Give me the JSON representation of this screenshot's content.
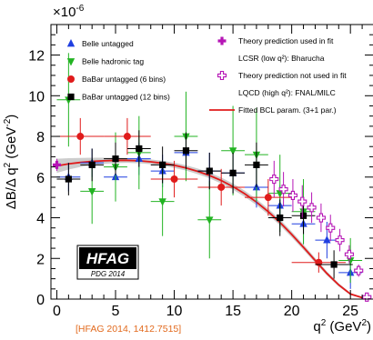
{
  "chart_data": {
    "type": "scatter",
    "title": "",
    "xlabel": "q",
    "xlabel_sup": "2",
    "xlabel_unit": "(GeV",
    "xlabel_unit_sup": "2",
    "xlabel_unit_close": ")",
    "ylabel": "ΔB/Δ q",
    "ylabel_sup": "2",
    "ylabel_unit": "(GeV",
    "ylabel_unit_sup": "-2",
    "ylabel_unit_close": ")",
    "y_multiplier_base": "×10",
    "y_multiplier_exp": "-6",
    "xlim": [
      -0.5,
      27
    ],
    "ylim": [
      0,
      13.5
    ],
    "xticks": [
      0,
      5,
      10,
      15,
      20,
      25
    ],
    "yticks": [
      0,
      2,
      4,
      6,
      8,
      10,
      12
    ],
    "x_minor_step": 1,
    "y_minor_step": 0.5,
    "grid": false,
    "legend_position": "top",
    "legend_left": [
      {
        "label": "Belle untagged",
        "marker": "triangle-up",
        "color": "#1f3fe0"
      },
      {
        "label": "Belle hadronic tag",
        "marker": "triangle-down",
        "color": "#22b322"
      },
      {
        "label": "BaBar untagged (6 bins)",
        "marker": "circle",
        "color": "#e01b1b"
      },
      {
        "label": "BaBar untagged (12 bins)",
        "marker": "square",
        "color": "#000000"
      }
    ],
    "legend_right": [
      {
        "label": "Theory prediction used in fit",
        "marker": "cross-filled",
        "color": "#b515b5"
      },
      {
        "label": "LCSR (low q²): Bharucha",
        "marker": "none",
        "color": "#b515b5"
      },
      {
        "label": "Theory prediction not used in fit",
        "marker": "cross-open",
        "color": "#b515b5"
      },
      {
        "label": "LQCD (high q²): FNAL/MILC",
        "marker": "none",
        "color": "#b515b5"
      },
      {
        "label": "Fitted BCL param. (3+1 par.)",
        "marker": "line",
        "color": "#e01b1b"
      }
    ],
    "fit_curve": {
      "name": "Fitted BCL param. (3+1 par.)",
      "color": "#e01b1b",
      "band_color": "#c8c8c8",
      "x": [
        0,
        1,
        2,
        3,
        4,
        5,
        6,
        7,
        8,
        9,
        10,
        11,
        12,
        13,
        14,
        15,
        16,
        17,
        18,
        19,
        20,
        21,
        22,
        23,
        24,
        25,
        26.4
      ],
      "y": [
        6.55,
        6.65,
        6.72,
        6.77,
        6.8,
        6.82,
        6.82,
        6.8,
        6.75,
        6.68,
        6.58,
        6.45,
        6.28,
        6.08,
        5.83,
        5.53,
        5.18,
        4.77,
        4.3,
        3.77,
        3.18,
        2.55,
        1.9,
        1.26,
        0.7,
        0.25,
        0.0
      ],
      "band": [
        0.35,
        0.28,
        0.22,
        0.18,
        0.15,
        0.13,
        0.12,
        0.12,
        0.12,
        0.12,
        0.13,
        0.13,
        0.14,
        0.14,
        0.15,
        0.15,
        0.15,
        0.15,
        0.15,
        0.15,
        0.14,
        0.13,
        0.12,
        0.1,
        0.08,
        0.05,
        0.02
      ]
    },
    "series": [
      {
        "name": "Belle untagged",
        "marker": "triangle-up",
        "color": "#1f3fe0",
        "points": [
          {
            "x": 1,
            "y": 6.0,
            "xerr": 1,
            "yerr": 0.7
          },
          {
            "x": 3,
            "y": 6.7,
            "xerr": 1,
            "yerr": 0.7
          },
          {
            "x": 5,
            "y": 6.0,
            "xerr": 1,
            "yerr": 0.7
          },
          {
            "x": 7,
            "y": 6.9,
            "xerr": 1,
            "yerr": 0.8
          },
          {
            "x": 9,
            "y": 6.3,
            "xerr": 1,
            "yerr": 0.8
          },
          {
            "x": 11,
            "y": 7.2,
            "xerr": 1,
            "yerr": 0.9
          },
          {
            "x": 13,
            "y": 6.3,
            "xerr": 1,
            "yerr": 0.9
          },
          {
            "x": 15,
            "y": 6.2,
            "xerr": 1,
            "yerr": 1.0
          },
          {
            "x": 17,
            "y": 5.5,
            "xerr": 1,
            "yerr": 1.0
          },
          {
            "x": 19,
            "y": 4.6,
            "xerr": 1,
            "yerr": 1.0
          },
          {
            "x": 21,
            "y": 3.7,
            "xerr": 1,
            "yerr": 1.0
          },
          {
            "x": 23,
            "y": 2.9,
            "xerr": 1,
            "yerr": 0.9
          },
          {
            "x": 25,
            "y": 1.3,
            "xerr": 1,
            "yerr": 0.8
          }
        ]
      },
      {
        "name": "Belle hadronic tag",
        "marker": "triangle-down",
        "color": "#22b322",
        "points": [
          {
            "x": 1,
            "y": 9.8,
            "xerr": 1,
            "yerr": 2.3
          },
          {
            "x": 3,
            "y": 5.3,
            "xerr": 1,
            "yerr": 1.6
          },
          {
            "x": 5,
            "y": 6.5,
            "xerr": 1,
            "yerr": 1.7
          },
          {
            "x": 7,
            "y": 7.2,
            "xerr": 1,
            "yerr": 1.8
          },
          {
            "x": 9,
            "y": 4.8,
            "xerr": 1,
            "yerr": 1.7
          },
          {
            "x": 11,
            "y": 8.0,
            "xerr": 1,
            "yerr": 2.2
          },
          {
            "x": 13,
            "y": 3.9,
            "xerr": 1,
            "yerr": 1.9
          },
          {
            "x": 15,
            "y": 7.3,
            "xerr": 1,
            "yerr": 2.2
          },
          {
            "x": 17,
            "y": 7.1,
            "xerr": 1,
            "yerr": 2.3
          },
          {
            "x": 19,
            "y": 5.2,
            "xerr": 1,
            "yerr": 1.9
          },
          {
            "x": 21,
            "y": 4.3,
            "xerr": 1,
            "yerr": 1.6
          },
          {
            "x": 25,
            "y": 1.9,
            "xerr": 1,
            "yerr": 1.1
          }
        ]
      },
      {
        "name": "BaBar untagged (6 bins)",
        "marker": "circle",
        "color": "#e01b1b",
        "points": [
          {
            "x": 2,
            "y": 8.0,
            "xerr": 2,
            "yerr": 0.9
          },
          {
            "x": 6,
            "y": 8.0,
            "xerr": 2,
            "yerr": 0.9
          },
          {
            "x": 10,
            "y": 5.9,
            "xerr": 2,
            "yerr": 0.9
          },
          {
            "x": 14,
            "y": 5.5,
            "xerr": 2,
            "yerr": 0.9
          },
          {
            "x": 18,
            "y": 5.0,
            "xerr": 2,
            "yerr": 0.9
          },
          {
            "x": 22.3,
            "y": 1.8,
            "xerr": 2.3,
            "yerr": 0.5
          }
        ]
      },
      {
        "name": "BaBar untagged (12 bins)",
        "marker": "square",
        "color": "#000000",
        "points": [
          {
            "x": 1,
            "y": 5.9,
            "xerr": 1,
            "yerr": 0.8
          },
          {
            "x": 3,
            "y": 6.6,
            "xerr": 1,
            "yerr": 0.8
          },
          {
            "x": 5,
            "y": 6.9,
            "xerr": 1,
            "yerr": 0.8
          },
          {
            "x": 7,
            "y": 7.4,
            "xerr": 1,
            "yerr": 0.9
          },
          {
            "x": 9,
            "y": 6.6,
            "xerr": 1,
            "yerr": 0.9
          },
          {
            "x": 11,
            "y": 7.3,
            "xerr": 1,
            "yerr": 0.9
          },
          {
            "x": 13,
            "y": 6.3,
            "xerr": 1,
            "yerr": 0.9
          },
          {
            "x": 15,
            "y": 6.2,
            "xerr": 1,
            "yerr": 1.0
          },
          {
            "x": 17,
            "y": 6.6,
            "xerr": 1,
            "yerr": 1.1
          },
          {
            "x": 19,
            "y": 4.0,
            "xerr": 1,
            "yerr": 0.9
          },
          {
            "x": 21,
            "y": 4.1,
            "xerr": 1,
            "yerr": 0.9
          },
          {
            "x": 23.6,
            "y": 1.7,
            "xerr": 1.6,
            "yerr": 0.7
          }
        ]
      },
      {
        "name": "Theory prediction used in fit",
        "marker": "cross-filled",
        "color": "#b515b5",
        "points": [
          {
            "x": 0,
            "y": 6.6,
            "xerr": 0,
            "yerr": 0.3
          }
        ]
      },
      {
        "name": "Theory prediction not used in fit",
        "marker": "cross-open",
        "color": "#b515b5",
        "points": [
          {
            "x": 18.5,
            "y": 5.9,
            "xerr": 0.2,
            "yerr": 0.9
          },
          {
            "x": 19.3,
            "y": 5.4,
            "xerr": 0.2,
            "yerr": 0.85
          },
          {
            "x": 20.1,
            "y": 5.1,
            "xerr": 0.2,
            "yerr": 0.8
          },
          {
            "x": 20.9,
            "y": 4.8,
            "xerr": 0.2,
            "yerr": 0.8
          },
          {
            "x": 21.7,
            "y": 4.5,
            "xerr": 0.2,
            "yerr": 0.75
          },
          {
            "x": 22.5,
            "y": 4.0,
            "xerr": 0.2,
            "yerr": 0.7
          },
          {
            "x": 23.3,
            "y": 3.5,
            "xerr": 0.2,
            "yerr": 0.65
          },
          {
            "x": 24.1,
            "y": 2.9,
            "xerr": 0.2,
            "yerr": 0.55
          },
          {
            "x": 24.9,
            "y": 2.2,
            "xerr": 0.2,
            "yerr": 0.45
          },
          {
            "x": 25.7,
            "y": 1.4,
            "xerr": 0.2,
            "yerr": 0.3
          },
          {
            "x": 26.4,
            "y": 0.1,
            "xerr": 0.1,
            "yerr": 0.05
          }
        ]
      }
    ],
    "logo": {
      "main": "HFAG",
      "sub": "PDG 2014"
    },
    "citation": {
      "text": "[HFAG 2014, 1412.7515]",
      "color": "#e26a1e"
    }
  }
}
